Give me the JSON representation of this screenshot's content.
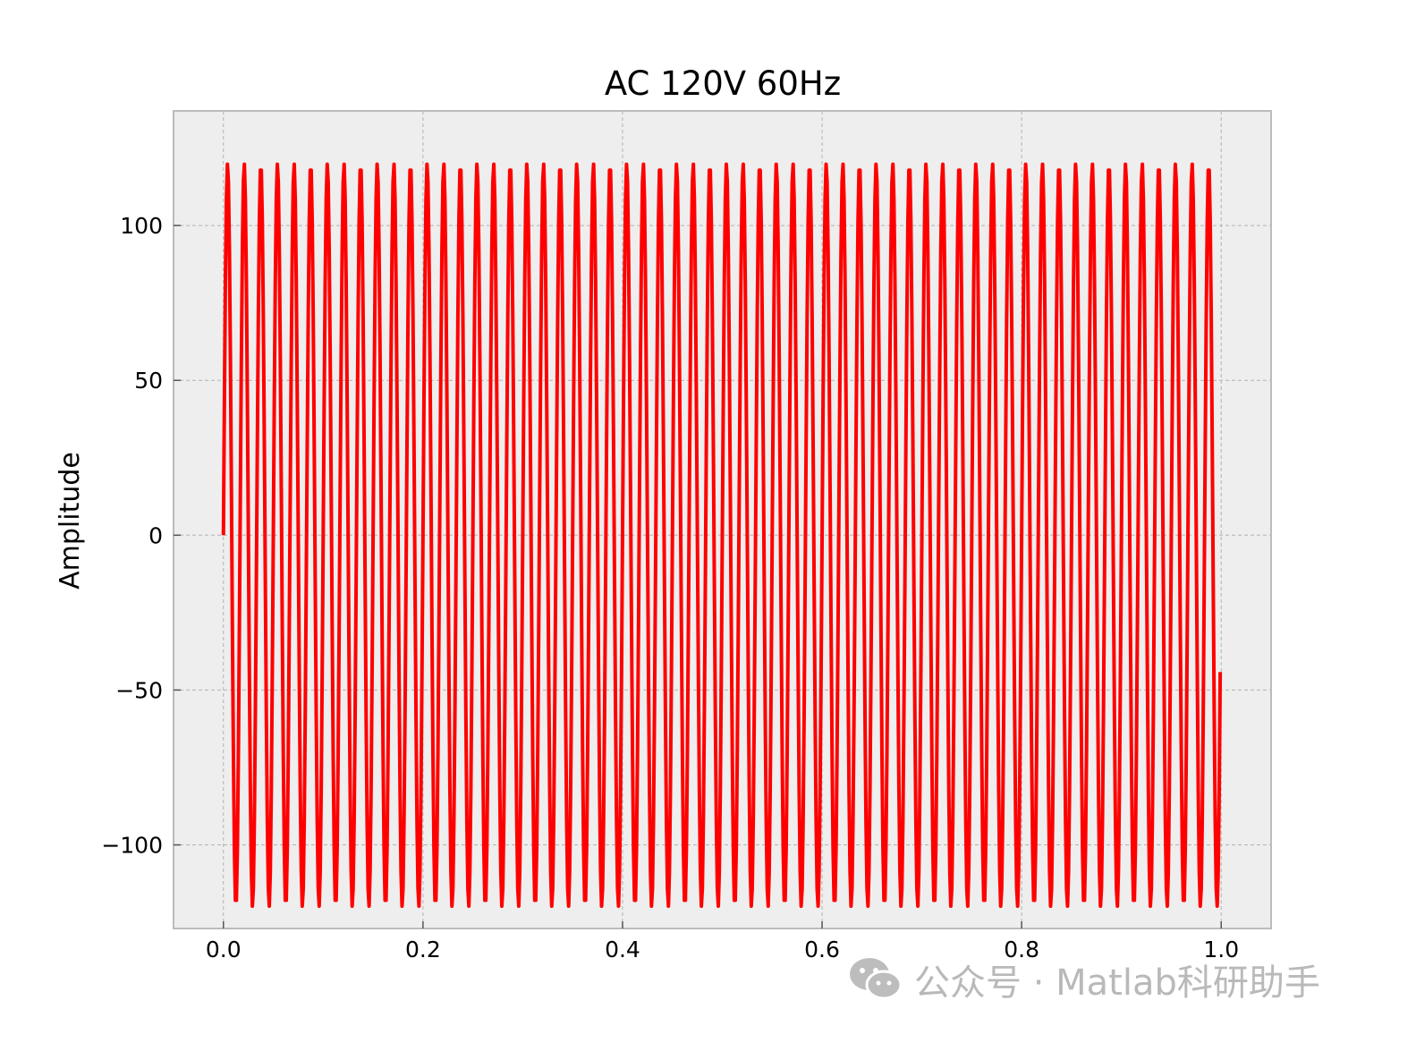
{
  "chart_data": {
    "type": "line",
    "title": "AC 120V 60Hz",
    "xlabel": "",
    "ylabel": "Amplitude",
    "xlim": [
      -0.05,
      1.05
    ],
    "ylim": [
      -127,
      137
    ],
    "x_ticks": [
      0.0,
      0.2,
      0.4,
      0.6,
      0.8,
      1.0
    ],
    "x_tick_labels": [
      "0.0",
      "0.2",
      "0.4",
      "0.6",
      "0.8",
      "1.0"
    ],
    "y_ticks": [
      100,
      50,
      0,
      -50,
      -100
    ],
    "y_tick_labels": [
      "100",
      "50",
      "0",
      "−50",
      "−100"
    ],
    "grid": true,
    "legend": "none",
    "series": [
      {
        "color": "#ff0000",
        "function": "120*sin(2*pi*60*t)",
        "amplitude": 120,
        "frequency_hz": 60,
        "x_range": [
          0,
          1
        ],
        "sampling_step": 0.001
      }
    ],
    "colors": {
      "plot_background": "#eeeeee",
      "frame": "#bcbcbc",
      "grid": "#b2b2b2",
      "line": "#ff0000"
    }
  },
  "watermark": {
    "icon": "wechat-icon",
    "text": "公众号 · Matlab科研助手"
  }
}
